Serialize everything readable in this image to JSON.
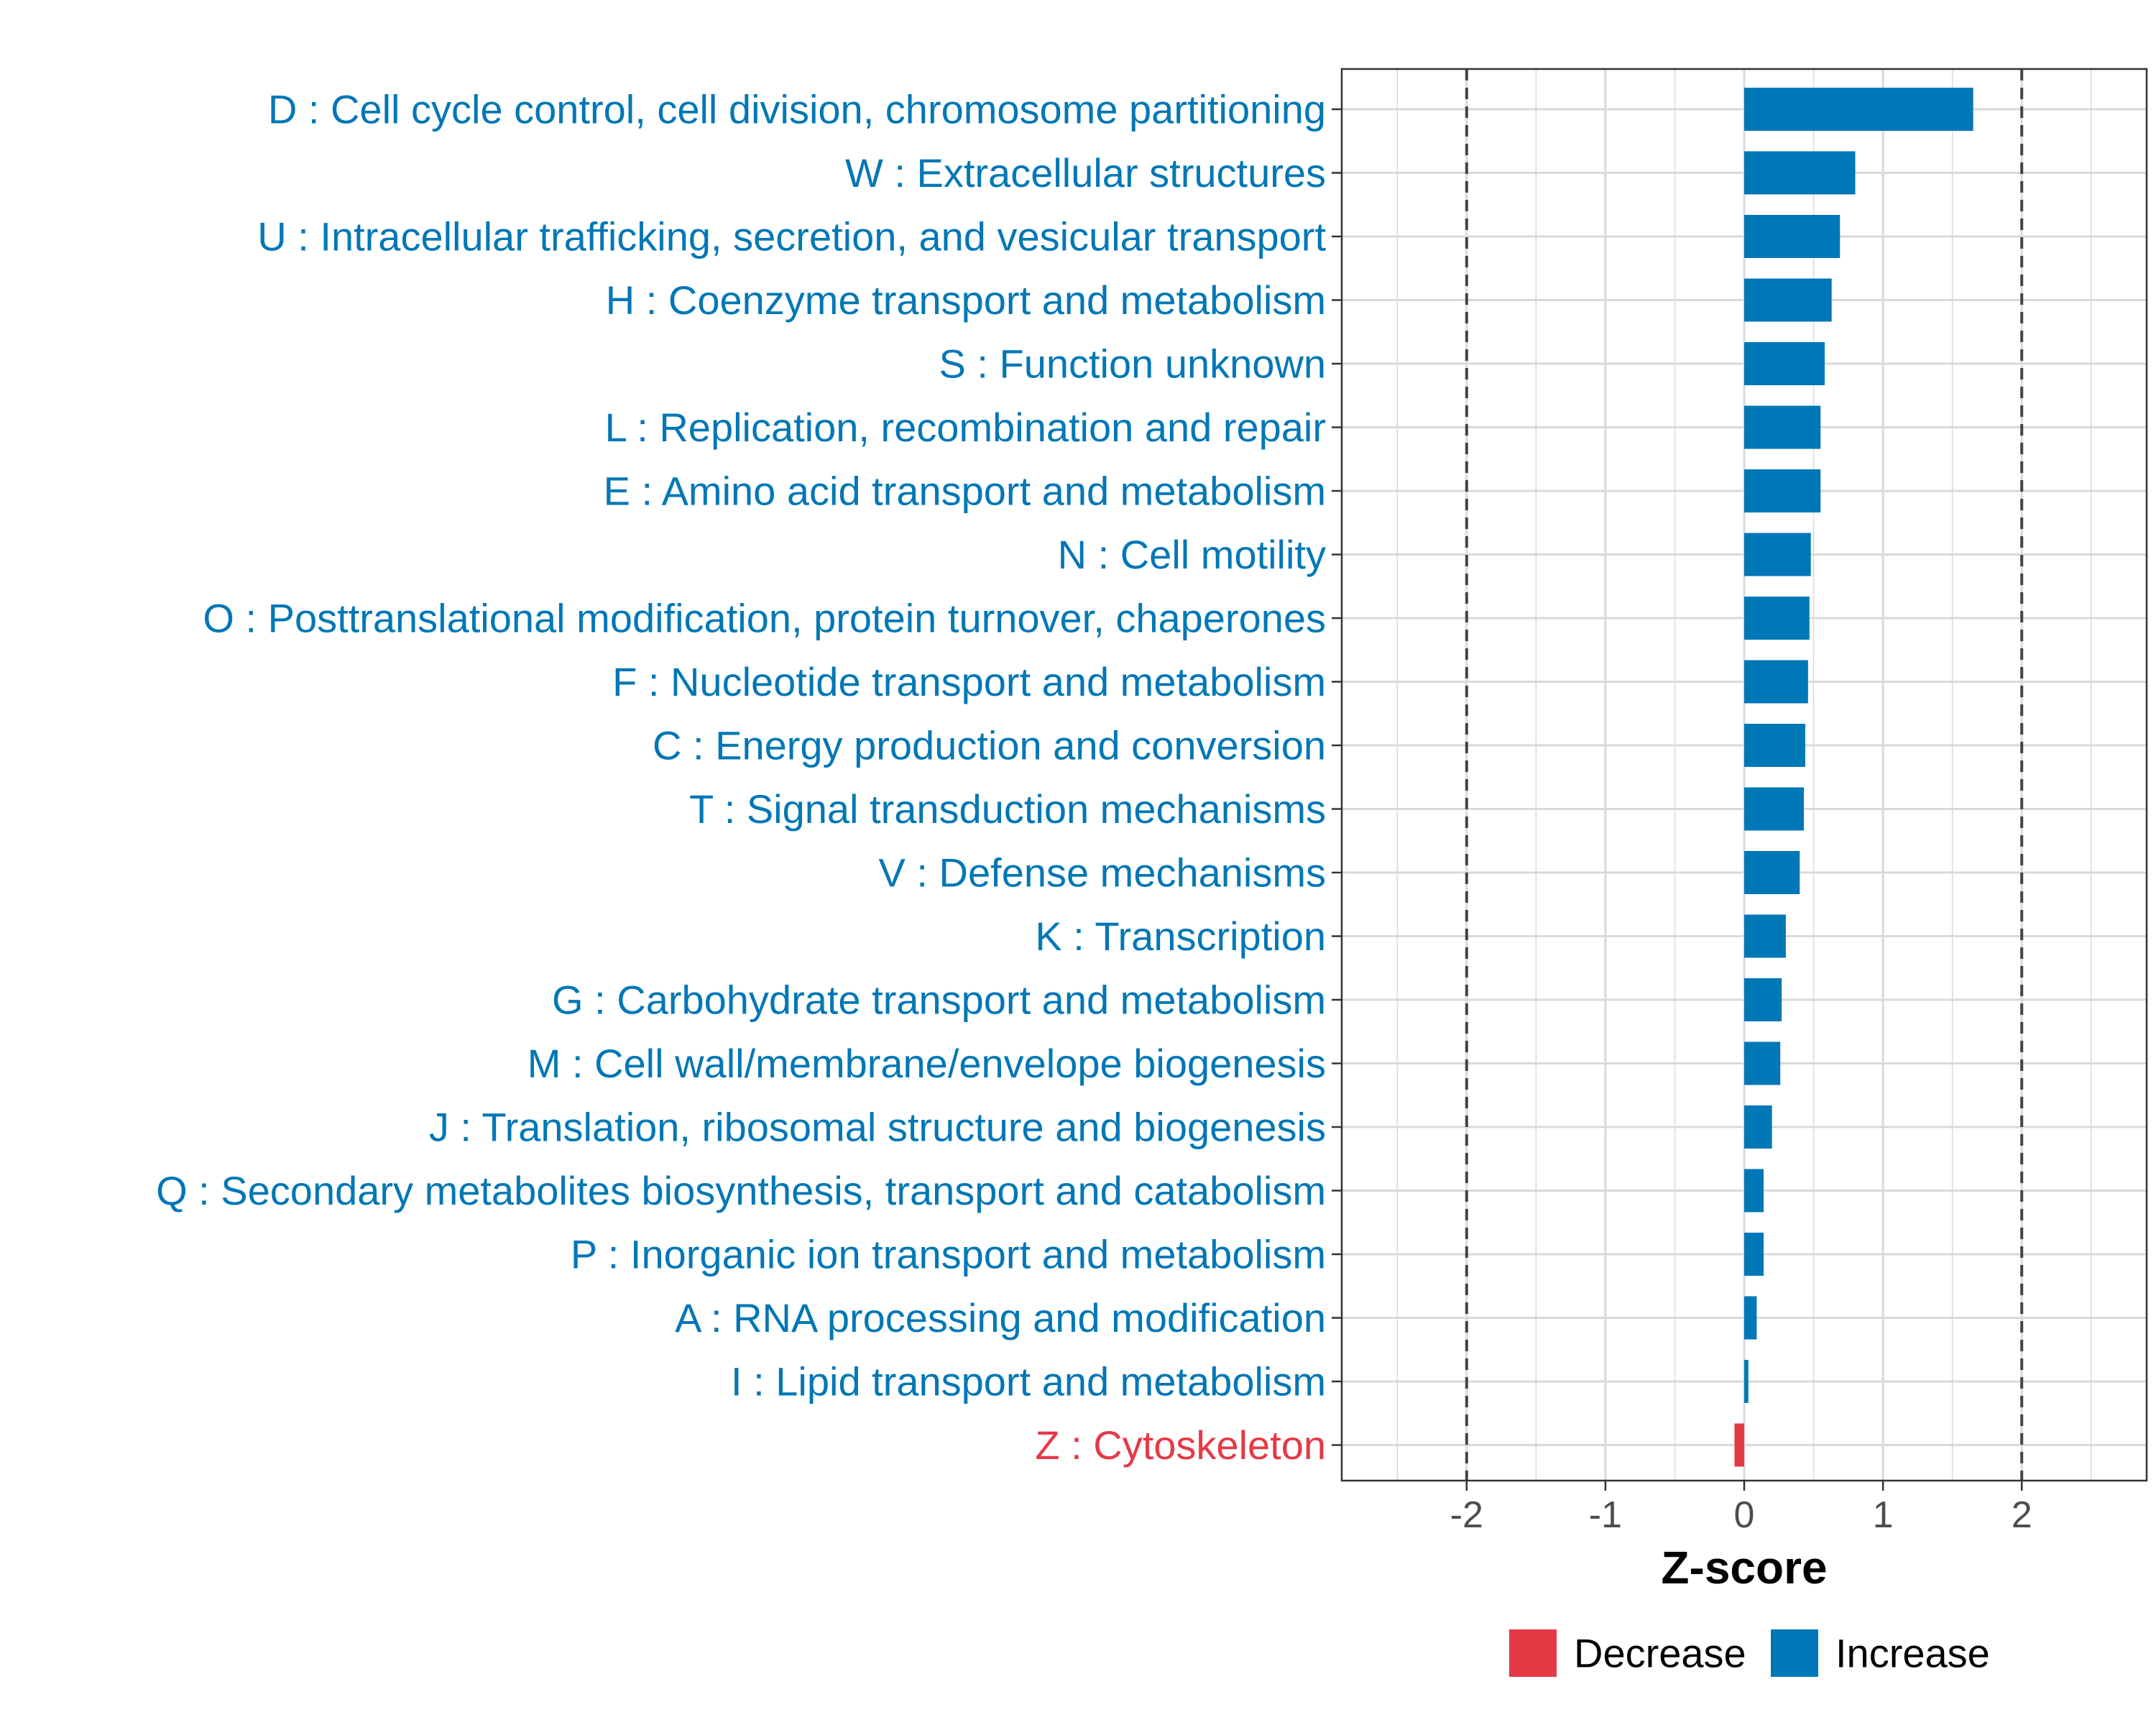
{
  "chart_data": {
    "type": "bar",
    "orientation": "horizontal",
    "xlabel": "Z-score",
    "xlim": [
      -2.9,
      2.9
    ],
    "xticks": [
      -2,
      -1,
      0,
      1,
      2
    ],
    "xtick_labels": [
      "-2",
      "-1",
      "0",
      "1",
      "2"
    ],
    "reference_lines": [
      -2,
      2
    ],
    "grid": true,
    "legend_position": "bottom",
    "colors": {
      "Decrease": "#e63946",
      "Increase": "#0077b6"
    },
    "legend": [
      {
        "name": "Decrease",
        "label": "Decrease",
        "color": "#e63946"
      },
      {
        "name": "Increase",
        "label": "Increase",
        "color": "#0077b6"
      }
    ],
    "categories": [
      "D : Cell cycle control, cell division, chromosome partitioning",
      "W : Extracellular structures",
      "U : Intracellular trafficking, secretion, and vesicular transport",
      "H : Coenzyme transport and metabolism",
      "S : Function unknown",
      "L : Replication, recombination and repair",
      "E : Amino acid transport and metabolism",
      "N : Cell motility",
      "O : Posttranslational modification, protein turnover, chaperones",
      "F : Nucleotide transport and metabolism",
      "C : Energy production and conversion",
      "T : Signal transduction mechanisms",
      "V : Defense mechanisms",
      "K : Transcription",
      "G : Carbohydrate transport and metabolism",
      "M : Cell wall/membrane/envelope biogenesis",
      "J : Translation, ribosomal structure and biogenesis",
      "Q : Secondary metabolites biosynthesis, transport and catabolism",
      "P : Inorganic ion transport and metabolism",
      "A : RNA processing and modification",
      "I : Lipid transport and metabolism",
      "Z : Cytoskeleton"
    ],
    "values": [
      1.65,
      0.8,
      0.69,
      0.63,
      0.58,
      0.55,
      0.55,
      0.48,
      0.47,
      0.46,
      0.44,
      0.43,
      0.4,
      0.3,
      0.27,
      0.26,
      0.2,
      0.14,
      0.14,
      0.09,
      0.03,
      -0.07
    ],
    "groups": [
      "Increase",
      "Increase",
      "Increase",
      "Increase",
      "Increase",
      "Increase",
      "Increase",
      "Increase",
      "Increase",
      "Increase",
      "Increase",
      "Increase",
      "Increase",
      "Increase",
      "Increase",
      "Increase",
      "Increase",
      "Increase",
      "Increase",
      "Increase",
      "Increase",
      "Decrease"
    ]
  }
}
